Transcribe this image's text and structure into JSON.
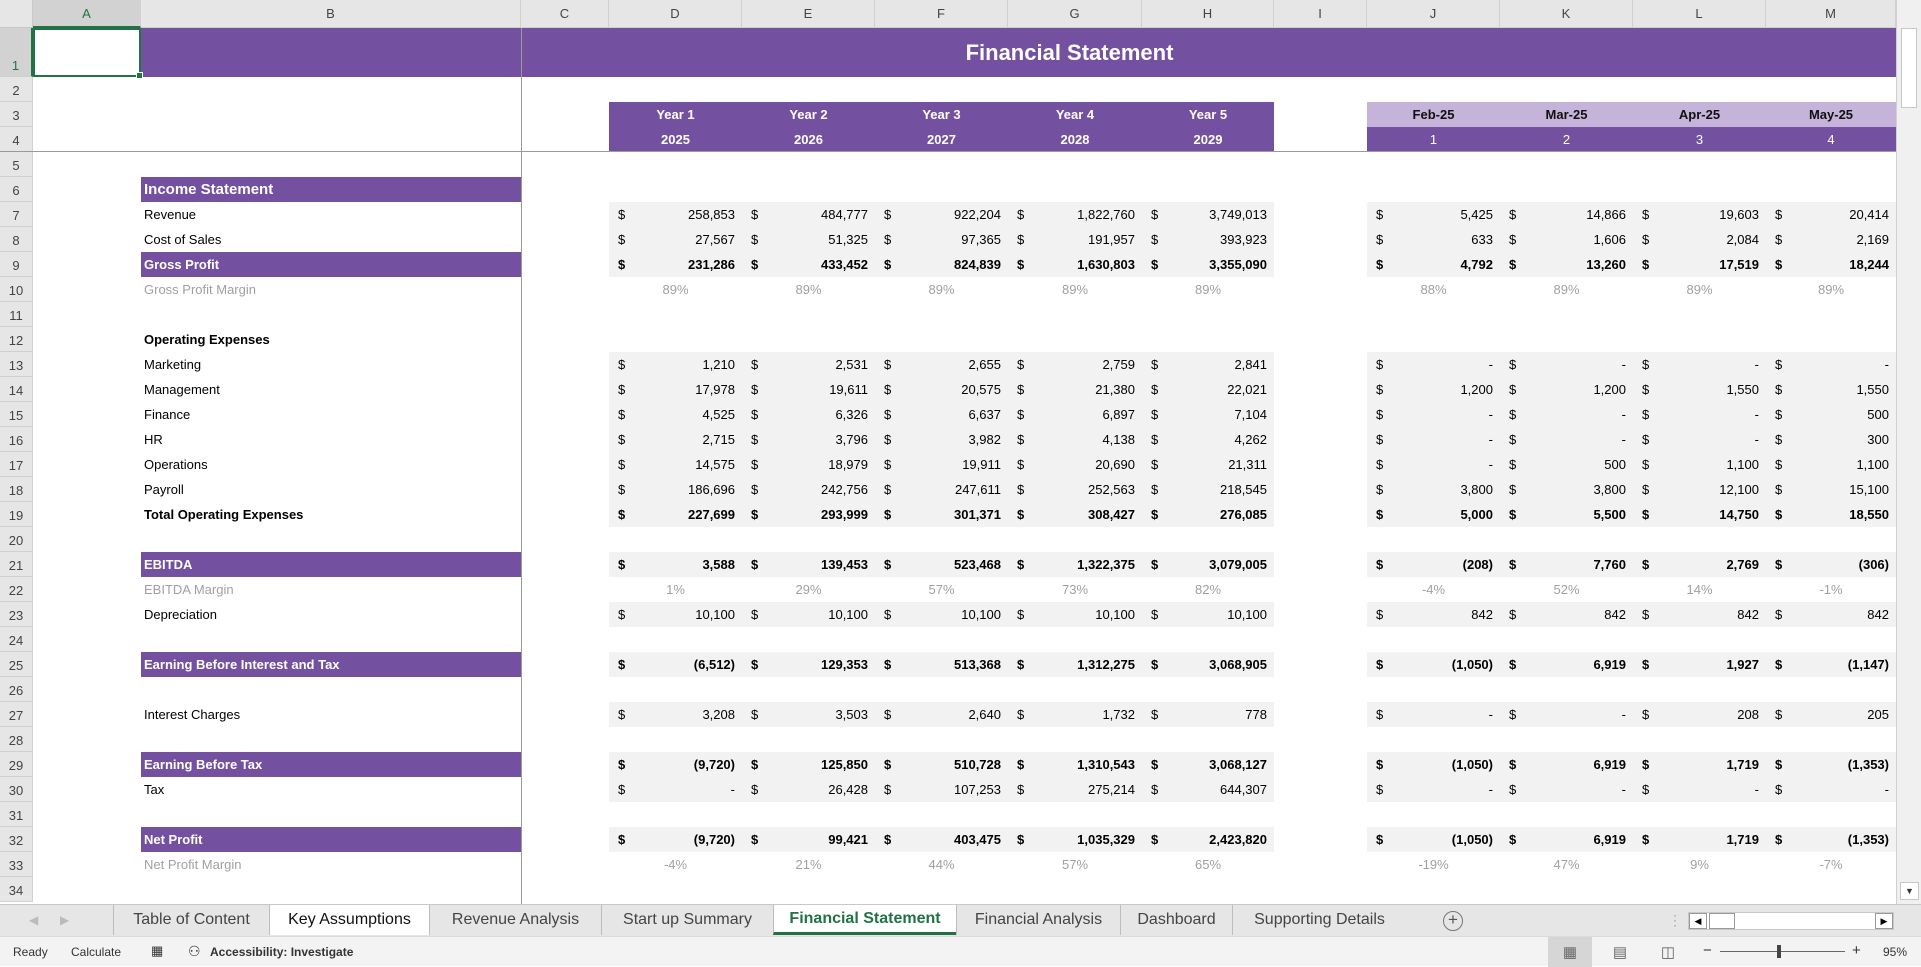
{
  "title": "Financial Statement",
  "columns": [
    "A",
    "B",
    "C",
    "D",
    "E",
    "F",
    "G",
    "H",
    "I",
    "J",
    "K",
    "L",
    "M"
  ],
  "row_numbers": [
    "1",
    "2",
    "3",
    "4",
    "5",
    "6",
    "7",
    "8",
    "9",
    "10",
    "11",
    "12",
    "13",
    "14",
    "15",
    "16",
    "17",
    "18",
    "19",
    "20",
    "21",
    "22",
    "23",
    "24",
    "25",
    "26",
    "27",
    "28",
    "29",
    "30",
    "31",
    "32",
    "33",
    "34"
  ],
  "year_headers": [
    {
      "label": "Year 1",
      "year": "2025"
    },
    {
      "label": "Year 2",
      "year": "2026"
    },
    {
      "label": "Year 3",
      "year": "2027"
    },
    {
      "label": "Year 4",
      "year": "2028"
    },
    {
      "label": "Year 5",
      "year": "2029"
    }
  ],
  "month_headers": [
    {
      "label": "Feb-25",
      "index": "1"
    },
    {
      "label": "Mar-25",
      "index": "2"
    },
    {
      "label": "Apr-25",
      "index": "3"
    },
    {
      "label": "May-25",
      "index": "4"
    }
  ],
  "currency_symbol": "$",
  "rows": [
    {
      "row": 6,
      "label": "Income Statement",
      "type": "section"
    },
    {
      "row": 7,
      "label": "Revenue",
      "type": "value",
      "years": [
        "258,853",
        "484,777",
        "922,204",
        "1,822,760",
        "3,749,013"
      ],
      "months": [
        "5,425",
        "14,866",
        "19,603",
        "20,414"
      ]
    },
    {
      "row": 8,
      "label": "Cost of Sales",
      "type": "value",
      "years": [
        "27,567",
        "51,325",
        "97,365",
        "191,957",
        "393,923"
      ],
      "months": [
        "633",
        "1,606",
        "2,084",
        "2,169"
      ]
    },
    {
      "row": 9,
      "label": "Gross Profit",
      "type": "section",
      "years": [
        "231,286",
        "433,452",
        "824,839",
        "1,630,803",
        "3,355,090"
      ],
      "months": [
        "4,792",
        "13,260",
        "17,519",
        "18,244"
      ]
    },
    {
      "row": 10,
      "label": "Gross Profit Margin",
      "type": "margin",
      "years": [
        "89%",
        "89%",
        "89%",
        "89%",
        "89%"
      ],
      "months": [
        "88%",
        "89%",
        "89%",
        "89%"
      ]
    },
    {
      "row": 12,
      "label": "Operating Expenses",
      "type": "heading"
    },
    {
      "row": 13,
      "label": "Marketing",
      "type": "value",
      "years": [
        "1,210",
        "2,531",
        "2,655",
        "2,759",
        "2,841"
      ],
      "months": [
        "-",
        "-",
        "-",
        "-"
      ]
    },
    {
      "row": 14,
      "label": "Management",
      "type": "value",
      "years": [
        "17,978",
        "19,611",
        "20,575",
        "21,380",
        "22,021"
      ],
      "months": [
        "1,200",
        "1,200",
        "1,550",
        "1,550"
      ]
    },
    {
      "row": 15,
      "label": "Finance",
      "type": "value",
      "years": [
        "4,525",
        "6,326",
        "6,637",
        "6,897",
        "7,104"
      ],
      "months": [
        "-",
        "-",
        "-",
        "500"
      ]
    },
    {
      "row": 16,
      "label": "HR",
      "type": "value",
      "years": [
        "2,715",
        "3,796",
        "3,982",
        "4,138",
        "4,262"
      ],
      "months": [
        "-",
        "-",
        "-",
        "300"
      ]
    },
    {
      "row": 17,
      "label": "Operations",
      "type": "value",
      "years": [
        "14,575",
        "18,979",
        "19,911",
        "20,690",
        "21,311"
      ],
      "months": [
        "-",
        "500",
        "1,100",
        "1,100"
      ]
    },
    {
      "row": 18,
      "label": "Payroll",
      "type": "value",
      "years": [
        "186,696",
        "242,756",
        "247,611",
        "252,563",
        "218,545"
      ],
      "months": [
        "3,800",
        "3,800",
        "12,100",
        "15,100"
      ]
    },
    {
      "row": 19,
      "label": "Total Operating Expenses",
      "type": "total",
      "years": [
        "227,699",
        "293,999",
        "301,371",
        "308,427",
        "276,085"
      ],
      "months": [
        "5,000",
        "5,500",
        "14,750",
        "18,550"
      ]
    },
    {
      "row": 21,
      "label": "EBITDA",
      "type": "section",
      "years": [
        "3,588",
        "139,453",
        "523,468",
        "1,322,375",
        "3,079,005"
      ],
      "months": [
        "(208)",
        "7,760",
        "2,769",
        "(306)"
      ]
    },
    {
      "row": 22,
      "label": "EBITDA Margin",
      "type": "margin",
      "years": [
        "1%",
        "29%",
        "57%",
        "73%",
        "82%"
      ],
      "months": [
        "-4%",
        "52%",
        "14%",
        "-1%"
      ]
    },
    {
      "row": 23,
      "label": "Depreciation",
      "type": "value",
      "years": [
        "10,100",
        "10,100",
        "10,100",
        "10,100",
        "10,100"
      ],
      "months": [
        "842",
        "842",
        "842",
        "842"
      ]
    },
    {
      "row": 25,
      "label": "Earning Before Interest and Tax",
      "type": "section",
      "years": [
        "(6,512)",
        "129,353",
        "513,368",
        "1,312,275",
        "3,068,905"
      ],
      "months": [
        "(1,050)",
        "6,919",
        "1,927",
        "(1,147)"
      ]
    },
    {
      "row": 27,
      "label": "Interest Charges",
      "type": "value",
      "years": [
        "3,208",
        "3,503",
        "2,640",
        "1,732",
        "778"
      ],
      "months": [
        "-",
        "-",
        "208",
        "205"
      ]
    },
    {
      "row": 29,
      "label": "Earning Before Tax",
      "type": "section",
      "years": [
        "(9,720)",
        "125,850",
        "510,728",
        "1,310,543",
        "3,068,127"
      ],
      "months": [
        "(1,050)",
        "6,919",
        "1,719",
        "(1,353)"
      ]
    },
    {
      "row": 30,
      "label": "Tax",
      "type": "value",
      "years": [
        "-",
        "26,428",
        "107,253",
        "275,214",
        "644,307"
      ],
      "months": [
        "-",
        "-",
        "-",
        "-"
      ]
    },
    {
      "row": 32,
      "label": "Net Profit",
      "type": "section",
      "years": [
        "(9,720)",
        "99,421",
        "403,475",
        "1,035,329",
        "2,423,820"
      ],
      "months": [
        "(1,050)",
        "6,919",
        "1,719",
        "(1,353)"
      ]
    },
    {
      "row": 33,
      "label": "Net Profit Margin",
      "type": "margin",
      "years": [
        "-4%",
        "21%",
        "44%",
        "57%",
        "65%"
      ],
      "months": [
        "-19%",
        "47%",
        "9%",
        "-7%"
      ]
    }
  ],
  "tabs": [
    "Table of Content",
    "Key Assumptions",
    "Revenue Analysis",
    "Start up Summary",
    "Financial Statement",
    "Financial Analysis",
    "Dashboard",
    "Supporting Details"
  ],
  "active_tab": "Financial Statement",
  "status": {
    "ready": "Ready",
    "calculate": "Calculate",
    "accessibility": "Accessibility: Investigate",
    "zoom": "95%"
  },
  "colors": {
    "accent": "#7351A0",
    "light_accent": "#C5B3D9",
    "excel_green": "#217346",
    "fill_gray": "#F2F2F2"
  }
}
